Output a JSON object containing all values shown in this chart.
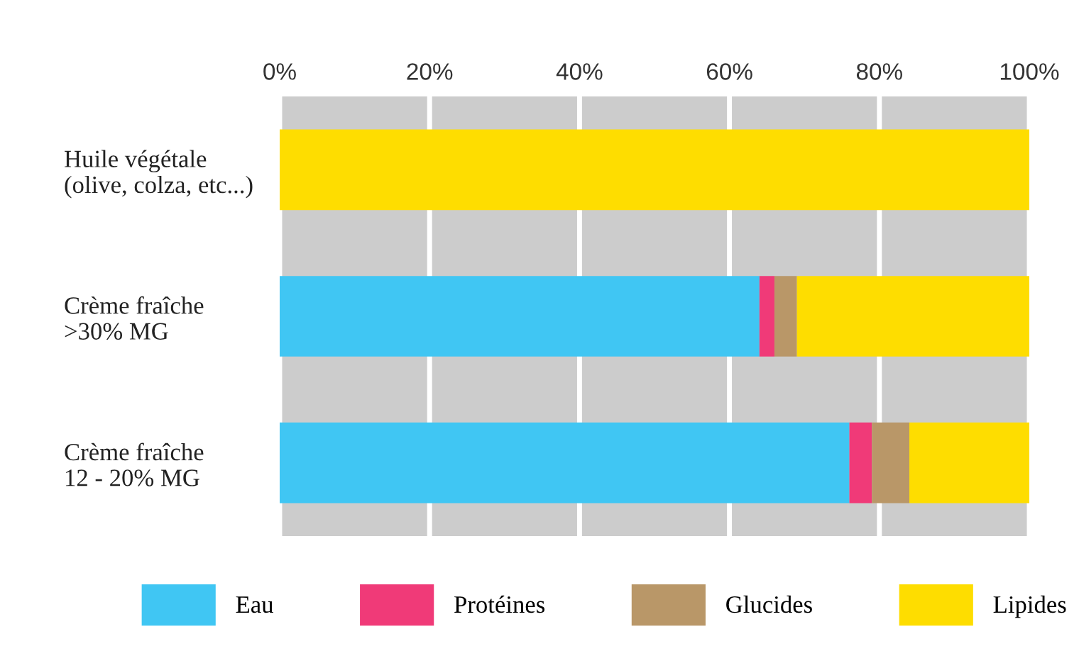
{
  "chart_data": {
    "type": "bar",
    "orientation": "horizontal",
    "stacked": true,
    "categories": [
      "Huile végétale\n(olive, colza, etc...)",
      "Crème fraîche\n>30% MG",
      "Crème fraîche\n12 - 20% MG"
    ],
    "series": [
      {
        "name": "Eau",
        "color": "#40c6f3",
        "values": [
          0,
          64,
          76
        ]
      },
      {
        "name": "Protéines",
        "color": "#f03a78",
        "values": [
          0,
          2,
          3
        ]
      },
      {
        "name": "Glucides",
        "color": "#b99768",
        "values": [
          0,
          3,
          5
        ]
      },
      {
        "name": "Lipides",
        "color": "#fedd00",
        "values": [
          100,
          31,
          16
        ]
      }
    ],
    "xlim": [
      0,
      100
    ],
    "xticks": [
      {
        "value": 0,
        "label": "0%"
      },
      {
        "value": 20,
        "label": "20%"
      },
      {
        "value": 40,
        "label": "40%"
      },
      {
        "value": 60,
        "label": "60%"
      },
      {
        "value": 80,
        "label": "80%"
      },
      {
        "value": 100,
        "label": "100%"
      }
    ],
    "grid": "x",
    "legend": "bottom"
  }
}
